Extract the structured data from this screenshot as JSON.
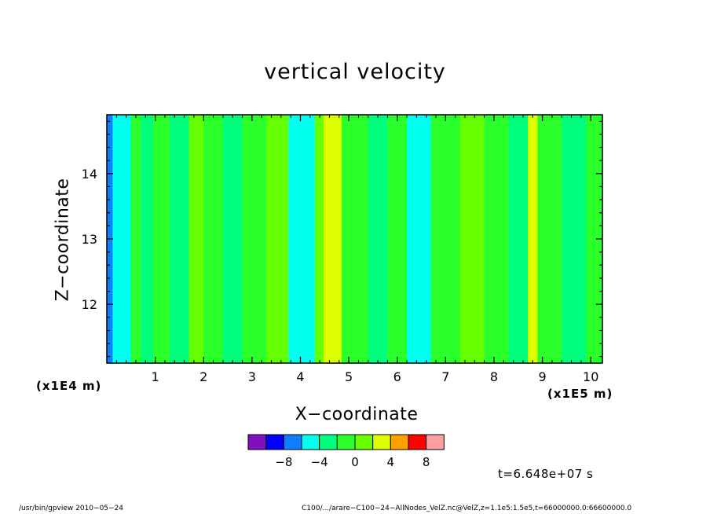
{
  "title": "vertical velocity",
  "xlabel": "X−coordinate",
  "ylabel": "Z−coordinate",
  "x_unit": "(x1E5 m)",
  "y_unit": "(x1E4 m)",
  "timestamp": "t=6.648e+07 s",
  "footer_left": "/usr/bin/gpview   2010−05−24",
  "footer_right": "C100/.../arare−C100−24−AllNodes_VelZ.nc@VelZ,z=1.1e5:1.5e5,t=66000000.0:66600000.0",
  "chart_data": {
    "type": "heatmap",
    "title": "vertical velocity",
    "xlabel": "X−coordinate",
    "ylabel": "Z−coordinate",
    "xlim": [
      0,
      10.24
    ],
    "ylim": [
      11.1,
      14.9
    ],
    "x_ticks": [
      1,
      2,
      3,
      4,
      5,
      6,
      7,
      8,
      9,
      10
    ],
    "y_ticks": [
      12,
      13,
      14
    ],
    "x_tick_labels": [
      "1",
      "2",
      "3",
      "4",
      "5",
      "6",
      "7",
      "8",
      "9",
      "10"
    ],
    "y_tick_labels": [
      "12",
      "13",
      "14"
    ],
    "colorbar": {
      "levels": [
        -12,
        -8,
        -4,
        0,
        4,
        8,
        12
      ],
      "tick_labels": [
        "−8",
        "−4",
        "0",
        "4",
        "8"
      ],
      "tick_values": [
        -8,
        -4,
        0,
        4,
        8
      ],
      "bins": [
        {
          "range": [
            -12,
            -10
          ],
          "color": "#7f0fbf"
        },
        {
          "range": [
            -10,
            -8
          ],
          "color": "#0000ff"
        },
        {
          "range": [
            -8,
            -6
          ],
          "color": "#0f7fff"
        },
        {
          "range": [
            -6,
            -4
          ],
          "color": "#00ffee"
        },
        {
          "range": [
            -4,
            -2
          ],
          "color": "#00ff7f"
        },
        {
          "range": [
            -2,
            0
          ],
          "color": "#2aff2a"
        },
        {
          "range": [
            0,
            2
          ],
          "color": "#66ff00"
        },
        {
          "range": [
            2,
            4
          ],
          "color": "#ddff00"
        },
        {
          "range": [
            4,
            6
          ],
          "color": "#ff9f00"
        },
        {
          "range": [
            6,
            8
          ],
          "color": "#ff0000"
        },
        {
          "range": [
            8,
            10
          ],
          "color": "#ff9f9f"
        }
      ]
    },
    "field_bands": [
      {
        "x": [
          0.0,
          0.12
        ],
        "value": -7
      },
      {
        "x": [
          0.12,
          0.5
        ],
        "value": -5
      },
      {
        "x": [
          0.5,
          0.7
        ],
        "value": -1
      },
      {
        "x": [
          0.7,
          0.95
        ],
        "value": -4
      },
      {
        "x": [
          0.95,
          1.3
        ],
        "value": -1
      },
      {
        "x": [
          1.3,
          1.7
        ],
        "value": -3
      },
      {
        "x": [
          1.7,
          2.0
        ],
        "value": 1
      },
      {
        "x": [
          2.0,
          2.4
        ],
        "value": -1
      },
      {
        "x": [
          2.4,
          2.8
        ],
        "value": -3
      },
      {
        "x": [
          2.8,
          3.3
        ],
        "value": -1
      },
      {
        "x": [
          3.3,
          3.75
        ],
        "value": 1
      },
      {
        "x": [
          3.75,
          4.3
        ],
        "value": -5
      },
      {
        "x": [
          4.3,
          4.48
        ],
        "value": 1
      },
      {
        "x": [
          4.48,
          4.85
        ],
        "value": 3
      },
      {
        "x": [
          4.85,
          5.4
        ],
        "value": -1
      },
      {
        "x": [
          5.4,
          5.8
        ],
        "value": -3
      },
      {
        "x": [
          5.8,
          6.2
        ],
        "value": -1
      },
      {
        "x": [
          6.2,
          6.7
        ],
        "value": -5
      },
      {
        "x": [
          6.7,
          7.3
        ],
        "value": -1
      },
      {
        "x": [
          7.3,
          7.8
        ],
        "value": 1
      },
      {
        "x": [
          7.8,
          8.3
        ],
        "value": -1
      },
      {
        "x": [
          8.3,
          8.7
        ],
        "value": -3
      },
      {
        "x": [
          8.7,
          8.9
        ],
        "value": 3
      },
      {
        "x": [
          8.9,
          9.4
        ],
        "value": -1
      },
      {
        "x": [
          9.4,
          9.9
        ],
        "value": -3
      },
      {
        "x": [
          9.9,
          10.24
        ],
        "value": -1
      }
    ]
  }
}
